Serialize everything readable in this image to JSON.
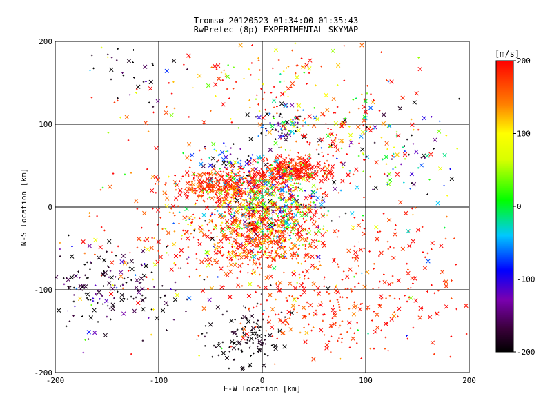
{
  "chart_data": {
    "type": "scatter",
    "title": "Tromsø 20120523 01:34:00-01:35:43",
    "subtitle": "RwPretec (8p) EXPERIMENTAL SKYMAP",
    "xlabel": "E-W location [km]",
    "ylabel": "N-S location [km]",
    "xlim": [
      -200,
      200
    ],
    "ylim": [
      -200,
      200
    ],
    "x_ticks": [
      -200,
      -100,
      0,
      100,
      200
    ],
    "y_ticks": [
      -200,
      -100,
      0,
      100,
      200
    ],
    "grid": true,
    "colorbar": {
      "label": "[m/s]",
      "range": [
        -200,
        200
      ],
      "ticks": [
        200,
        100,
        0,
        -100,
        -200
      ],
      "colormap": "rainbow: black (-200) → purple → blue → cyan → green → yellow → orange → red (200)"
    },
    "markers": [
      "x",
      "+"
    ],
    "clusters": [
      {
        "x": 20,
        "y": 98,
        "spread": [
          10,
          10
        ],
        "n": 70,
        "v_mean": -120,
        "v_spread": 90
      },
      {
        "x": 28,
        "y": 45,
        "spread": [
          18,
          8
        ],
        "n": 320,
        "v_mean": 190,
        "v_spread": 20
      },
      {
        "x": -35,
        "y": 25,
        "spread": [
          25,
          10
        ],
        "n": 320,
        "v_mean": 180,
        "v_spread": 30
      },
      {
        "x": -32,
        "y": 55,
        "spread": [
          12,
          10
        ],
        "n": 60,
        "v_mean": -80,
        "v_spread": 90
      },
      {
        "x": 10,
        "y": 0,
        "spread": [
          25,
          25
        ],
        "n": 600,
        "v_mean": 40,
        "v_spread": 130
      },
      {
        "x": 0,
        "y": -35,
        "spread": [
          30,
          22
        ],
        "n": 450,
        "v_mean": 185,
        "v_spread": 40
      },
      {
        "x": -15,
        "y": -160,
        "spread": [
          18,
          20
        ],
        "n": 120,
        "v_mean": -195,
        "v_spread": 10
      },
      {
        "x": 40,
        "y": -120,
        "spread": [
          35,
          30
        ],
        "n": 160,
        "v_mean": 185,
        "v_spread": 30
      },
      {
        "x": -150,
        "y": -100,
        "spread": [
          35,
          25
        ],
        "n": 180,
        "v_mean": -180,
        "v_spread": 40
      },
      {
        "x": 0,
        "y": 150,
        "spread": [
          60,
          30
        ],
        "n": 120,
        "v_mean": 150,
        "v_spread": 80
      },
      {
        "x": 80,
        "y": 90,
        "spread": [
          35,
          25
        ],
        "n": 110,
        "v_mean": 140,
        "v_spread": 120
      },
      {
        "x": -120,
        "y": 160,
        "spread": [
          30,
          25
        ],
        "n": 30,
        "v_mean": -180,
        "v_spread": 30
      },
      {
        "x": 120,
        "y": -80,
        "spread": [
          40,
          45
        ],
        "n": 150,
        "v_mean": 190,
        "v_spread": 20
      },
      {
        "x": -80,
        "y": -30,
        "spread": [
          45,
          35
        ],
        "n": 150,
        "v_mean": 170,
        "v_spread": 60
      },
      {
        "x": 130,
        "y": 60,
        "spread": [
          40,
          30
        ],
        "n": 80,
        "v_mean": -100,
        "v_spread": 110
      },
      {
        "x": 0,
        "y": 0,
        "spread": [
          120,
          120
        ],
        "n": 250,
        "v_mean": 100,
        "v_spread": 140
      }
    ]
  }
}
